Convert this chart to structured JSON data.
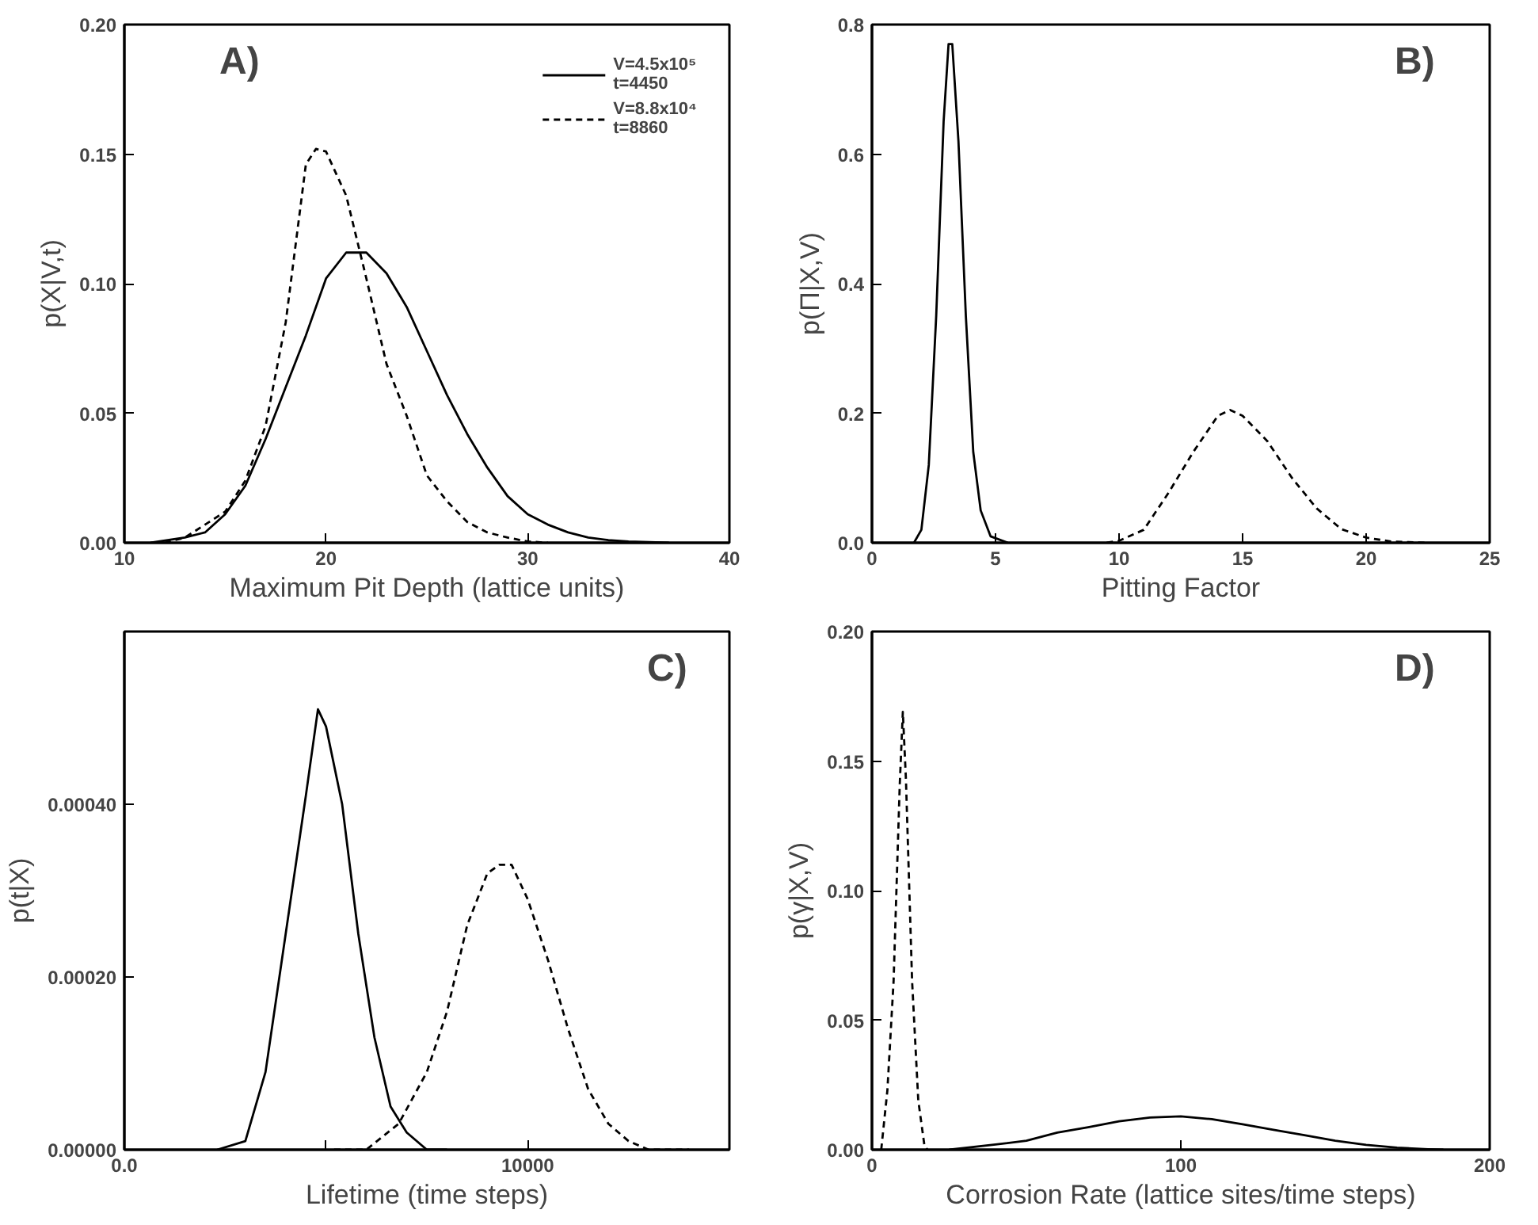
{
  "chart_data": [
    {
      "type": "line",
      "xlabel": "Maximum Pit Depth (lattice units)",
      "ylabel": "p(X|V,t)",
      "annotations": [
        "A)"
      ],
      "xlim": [
        10,
        40
      ],
      "ylim": [
        0,
        0.2
      ],
      "xticks": [
        10,
        20,
        30,
        40
      ],
      "yticks": [
        {
          "value": 0,
          "label": "0.00"
        },
        {
          "value": 0.05,
          "label": "0.05"
        },
        {
          "value": 0.1,
          "label": "0.10"
        },
        {
          "value": 0.15,
          "label": "0.15"
        },
        {
          "value": 0.2,
          "label": "0.20"
        }
      ],
      "grid": false,
      "legend": "top right",
      "series": [
        {
          "name": "V=4.5x10⁵\nt=4450",
          "color": "#000000",
          "line_style": "solid",
          "x": [
            11.3,
            13,
            14,
            15,
            16,
            17,
            18,
            19,
            20,
            21,
            22,
            23,
            24,
            25,
            26,
            27,
            28,
            29,
            30,
            31,
            32,
            33,
            34,
            35,
            37
          ],
          "values": [
            0,
            0.002,
            0.004,
            0.011,
            0.022,
            0.04,
            0.06,
            0.08,
            0.102,
            0.112,
            0.112,
            0.104,
            0.091,
            0.074,
            0.057,
            0.042,
            0.029,
            0.018,
            0.011,
            0.007,
            0.004,
            0.002,
            0.001,
            0.0005,
            0
          ]
        },
        {
          "name": "V=8.8x10⁴\nt=8860",
          "color": "#000000",
          "line_style": "dashed",
          "x": [
            12,
            13,
            14,
            15,
            16,
            17,
            18,
            19,
            19.5,
            20,
            21,
            22,
            23,
            24,
            25,
            26,
            27,
            28,
            29,
            30,
            31
          ],
          "values": [
            0,
            0.002,
            0.007,
            0.012,
            0.024,
            0.045,
            0.085,
            0.146,
            0.152,
            0.151,
            0.134,
            0.102,
            0.069,
            0.049,
            0.026,
            0.016,
            0.008,
            0.004,
            0.002,
            0.0005,
            0
          ]
        }
      ]
    },
    {
      "type": "line",
      "xlabel": "Pitting Factor",
      "ylabel": "p(Π|X,V)",
      "annotations": [
        "B)"
      ],
      "xlim": [
        0,
        25
      ],
      "ylim": [
        0,
        0.8
      ],
      "xticks": [
        0,
        5,
        10,
        15,
        20,
        25
      ],
      "yticks": [
        {
          "value": 0,
          "label": "0.0"
        },
        {
          "value": 0.2,
          "label": "0.2"
        },
        {
          "value": 0.4,
          "label": "0.4"
        },
        {
          "value": 0.6,
          "label": "0.6"
        },
        {
          "value": 0.8,
          "label": "0.8"
        }
      ],
      "grid": false,
      "series": [
        {
          "color": "#000000",
          "line_style": "solid",
          "x": [
            1.7,
            2.0,
            2.3,
            2.6,
            2.9,
            3.1,
            3.25,
            3.5,
            3.8,
            4.1,
            4.4,
            4.8,
            5.5
          ],
          "values": [
            0,
            0.02,
            0.12,
            0.35,
            0.65,
            0.77,
            0.77,
            0.62,
            0.35,
            0.14,
            0.05,
            0.01,
            0
          ]
        },
        {
          "color": "#000000",
          "line_style": "dashed",
          "x": [
            9.5,
            10,
            11,
            12,
            13,
            14,
            14.5,
            15,
            16,
            17,
            18,
            19,
            20,
            21,
            22.5
          ],
          "values": [
            0,
            0.003,
            0.02,
            0.077,
            0.14,
            0.196,
            0.205,
            0.196,
            0.157,
            0.1,
            0.053,
            0.021,
            0.008,
            0.002,
            0
          ]
        }
      ]
    },
    {
      "type": "line",
      "xlabel": "Lifetime (time steps)",
      "ylabel": "p(t|X)",
      "annotations": [
        "C)"
      ],
      "xlim": [
        0,
        15000
      ],
      "ylim": [
        0,
        0.0006
      ],
      "xticks": [
        {
          "value": 0,
          "label": "0.0"
        },
        {
          "value": 5000,
          "label": null
        },
        {
          "value": 10000,
          "label": "10000"
        }
      ],
      "yticks": [
        {
          "value": 0,
          "label": "0.00000"
        },
        {
          "value": 0.0002,
          "label": "0.00020"
        },
        {
          "value": 0.0004,
          "label": "0.00040"
        }
      ],
      "grid": false,
      "series": [
        {
          "color": "#000000",
          "line_style": "solid",
          "x": [
            2300,
            3000,
            3500,
            4000,
            4500,
            4800,
            5000,
            5400,
            5800,
            6200,
            6600,
            7000,
            7500,
            8000
          ],
          "values": [
            0,
            1e-05,
            9e-05,
            0.00025,
            0.00041,
            0.00051,
            0.00049,
            0.0004,
            0.00025,
            0.00013,
            5e-05,
            2e-05,
            0,
            0
          ]
        },
        {
          "color": "#000000",
          "line_style": "dashed",
          "x": [
            5200,
            6000,
            6800,
            7500,
            8000,
            8500,
            9000,
            9300,
            9600,
            10000,
            10500,
            11000,
            11500,
            12000,
            12500,
            13000,
            14000
          ],
          "values": [
            0,
            0,
            3e-05,
            9e-05,
            0.00016,
            0.00026,
            0.00032,
            0.00033,
            0.00033,
            0.00029,
            0.00022,
            0.00014,
            7e-05,
            3e-05,
            1e-05,
            0,
            0
          ]
        }
      ]
    },
    {
      "type": "line",
      "xlabel": "Corrosion Rate (lattice sites/time steps)",
      "ylabel": "p(γ|X,V)",
      "annotations": [
        "D)"
      ],
      "xlim": [
        0,
        200
      ],
      "ylim": [
        0,
        0.2
      ],
      "xticks": [
        0,
        100,
        200
      ],
      "yticks": [
        {
          "value": 0,
          "label": "0.00"
        },
        {
          "value": 0.05,
          "label": "0.05"
        },
        {
          "value": 0.1,
          "label": "0.10"
        },
        {
          "value": 0.15,
          "label": "0.15"
        },
        {
          "value": 0.2,
          "label": "0.20"
        }
      ],
      "grid": false,
      "series": [
        {
          "color": "#000000",
          "line_style": "dashed",
          "x": [
            3,
            5,
            7,
            9,
            10,
            11,
            13,
            15,
            17,
            18
          ],
          "values": [
            0,
            0.023,
            0.065,
            0.141,
            0.169,
            0.143,
            0.065,
            0.019,
            0.0015,
            0
          ]
        },
        {
          "color": "#000000",
          "line_style": "solid",
          "x": [
            25,
            40,
            50,
            60,
            70,
            80,
            90,
            100,
            110,
            120,
            130,
            140,
            150,
            160,
            170,
            180,
            185
          ],
          "values": [
            0,
            0.002,
            0.0035,
            0.0066,
            0.0087,
            0.011,
            0.0124,
            0.0129,
            0.0118,
            0.0098,
            0.0077,
            0.0056,
            0.0035,
            0.0019,
            0.0008,
            0.0002,
            0
          ]
        }
      ]
    }
  ]
}
